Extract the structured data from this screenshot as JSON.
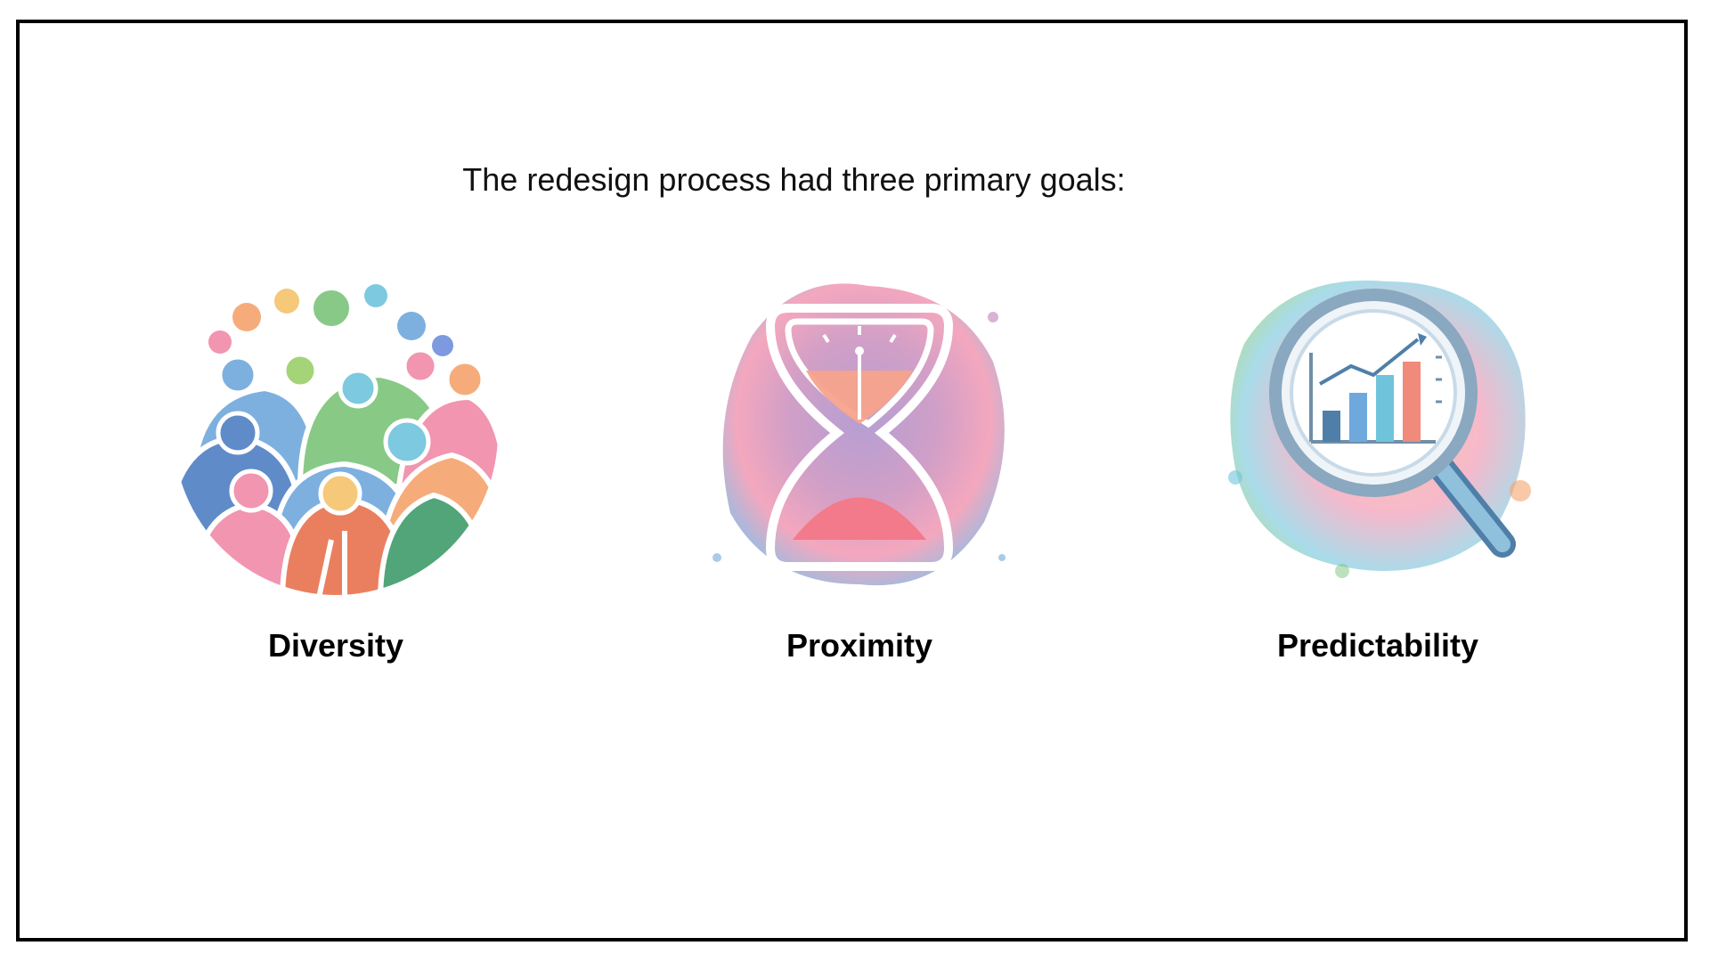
{
  "slide": {
    "intro": "The redesign process had three primary goals:",
    "goals": [
      {
        "label": "Diversity",
        "icon": "diverse-people-icon"
      },
      {
        "label": "Proximity",
        "icon": "hourglass-icon"
      },
      {
        "label": "Predictability",
        "icon": "magnifier-chart-icon"
      }
    ]
  },
  "colors": {
    "border": "#000000",
    "text": "#111111",
    "pink": "#f08aa8",
    "orange": "#f5a36c",
    "blue": "#6fa8dc",
    "green": "#7cc47a",
    "purple": "#9b7fc4"
  }
}
